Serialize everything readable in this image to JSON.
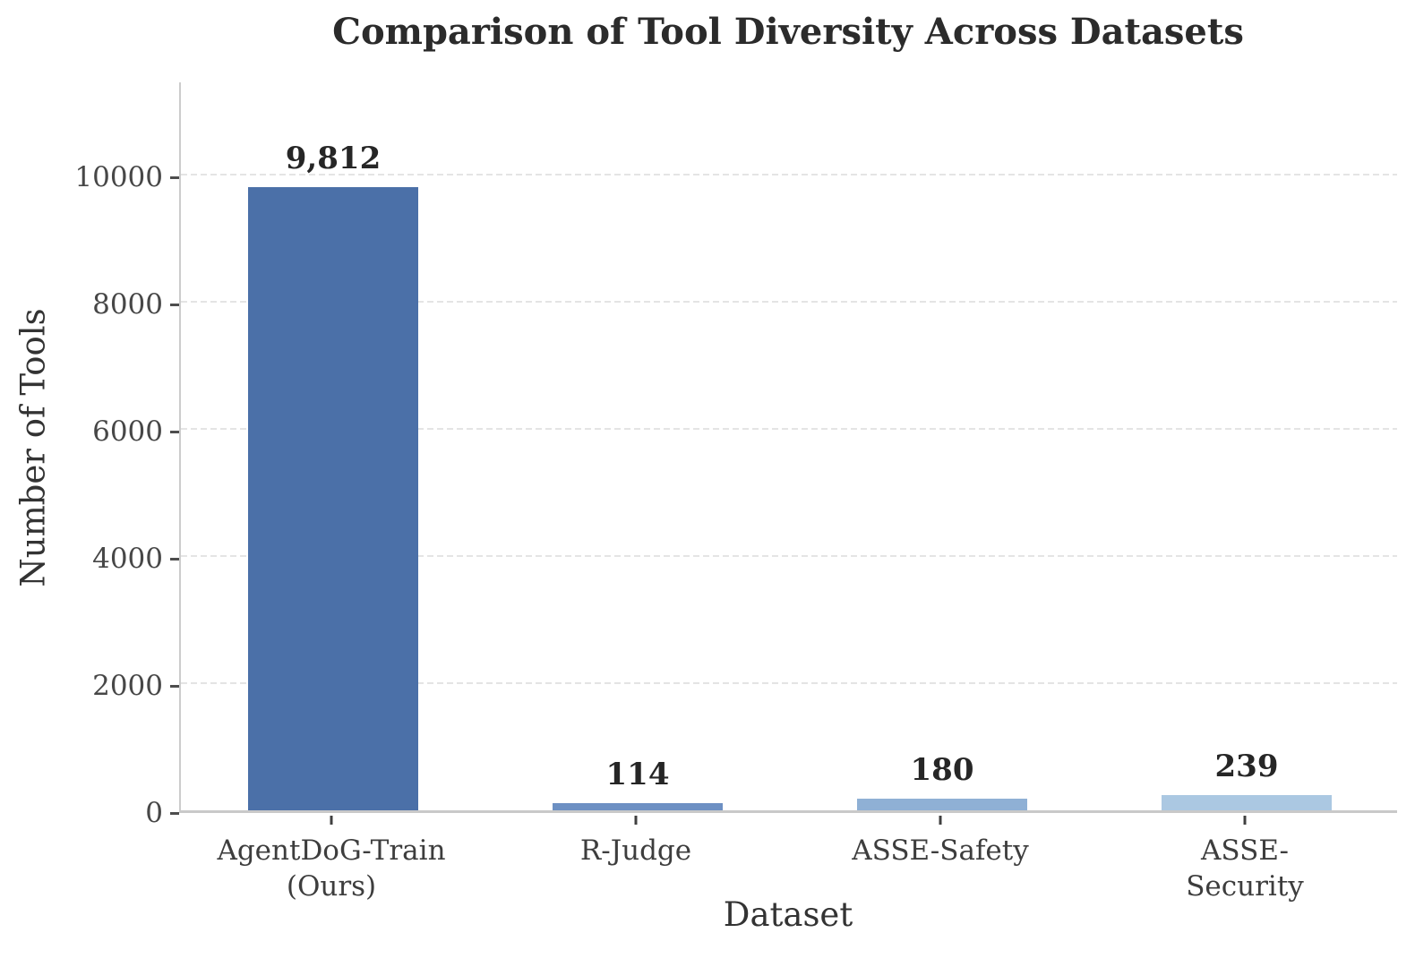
{
  "chart_data": {
    "type": "bar",
    "title": "Comparison of Tool Diversity Across Datasets",
    "xlabel": "Dataset",
    "ylabel": "Number of Tools",
    "categories": [
      "AgentDoG-Train\n(Ours)",
      "R-Judge",
      "ASSE-Safety",
      "ASSE-Security"
    ],
    "values": [
      9812,
      114,
      180,
      239
    ],
    "value_labels": [
      "9,812",
      "114",
      "180",
      "239"
    ],
    "bar_colors": [
      "#4b70a8",
      "#6d90c3",
      "#8fb0d5",
      "#abc8e2"
    ],
    "yticks": [
      0,
      2000,
      4000,
      6000,
      8000,
      10000
    ],
    "ylim": [
      0,
      11500
    ],
    "grid": "horizontal dashed gridlines",
    "gridline_color": "#e4e4e4",
    "legend": "none"
  }
}
